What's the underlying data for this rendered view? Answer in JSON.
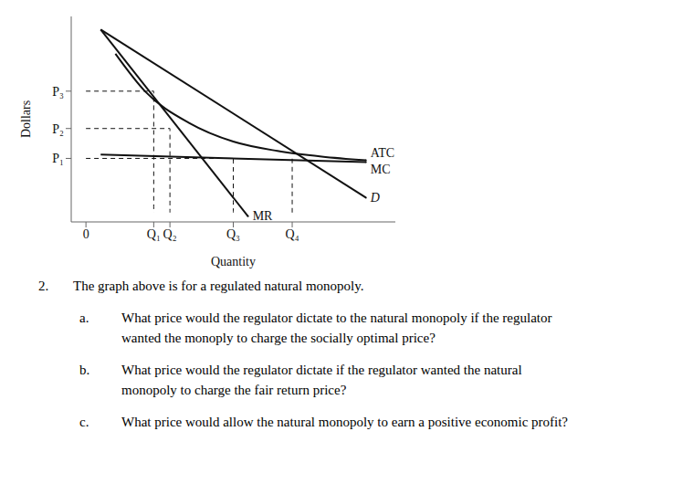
{
  "chart_data": {
    "type": "line",
    "xlabel": "Quantity",
    "ylabel": "Dollars",
    "xlim": [
      -0.5,
      10.5
    ],
    "ylim": [
      -0.5,
      10.5
    ],
    "xticks": [
      0,
      {
        "value": 2.3,
        "label": "Q₁"
      },
      {
        "value": 2.85,
        "label": "Q₂"
      },
      {
        "value": 5.0,
        "label": "Q₃"
      },
      {
        "value": 7.0,
        "label": "Q₄"
      }
    ],
    "yticks": [
      {
        "value": 2.9,
        "label": "P₁"
      },
      {
        "value": 4.5,
        "label": "P₂"
      },
      {
        "value": 6.5,
        "label": "P₃"
      }
    ],
    "grid": false,
    "series": [
      {
        "name": "D",
        "color": "#111111",
        "line_style": "solid",
        "x": [
          0.5,
          9.5
        ],
        "values": [
          9.8,
          0.8
        ]
      },
      {
        "name": "MR",
        "color": "#111111",
        "line_style": "solid",
        "x": [
          0.5,
          5.5
        ],
        "values": [
          9.8,
          -0.2
        ]
      },
      {
        "name": "ATC",
        "color": "#111111",
        "line_style": "solid",
        "x": [
          1.0,
          2.0,
          3.5,
          5.0,
          6.5,
          8.0,
          9.5
        ],
        "values": [
          8.5,
          6.5,
          4.8,
          3.8,
          3.3,
          3.0,
          2.8
        ]
      },
      {
        "name": "MC",
        "color": "#111111",
        "line_style": "solid",
        "x": [
          0.5,
          9.5
        ],
        "values": [
          3.1,
          2.7
        ]
      },
      {
        "color": "#111111",
        "line_style": "dashed",
        "x": [
          0,
          2.3,
          2.3
        ],
        "values": [
          6.5,
          6.5,
          0
        ]
      },
      {
        "color": "#111111",
        "line_style": "dashed",
        "x": [
          0,
          2.85,
          2.85
        ],
        "values": [
          4.5,
          4.5,
          0
        ]
      },
      {
        "color": "#111111",
        "line_style": "dashed",
        "x": [
          0,
          5.0,
          5.0
        ],
        "values": [
          2.9,
          2.9,
          0
        ]
      },
      {
        "color": "#111111",
        "line_style": "dashed",
        "x": [
          7.0,
          7.0
        ],
        "values": [
          0,
          2.9
        ]
      }
    ],
    "annotations": [
      {
        "label": "2.",
        "text": "The graph above is for a regulated natural monopoly."
      },
      {
        "label": "a.",
        "text": "What price would the regulator dictate to the natural monopoly if the regulator\nwanted the monoply to charge the socially optimal price?"
      },
      {
        "label": "b.",
        "text": "What price would the regulator dictate if the regulator wanted the natural\nmonopoly to charge the fair return price?"
      },
      {
        "label": "c.",
        "text": "What price would allow the natural monopoly to earn a positive economic profit?"
      }
    ]
  }
}
